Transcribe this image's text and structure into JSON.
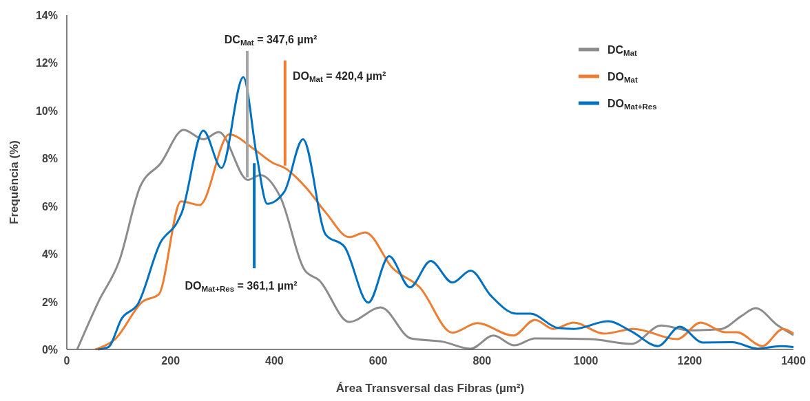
{
  "chart_data": {
    "type": "line",
    "xlabel": "Área Transversal das Fibras (µm²)",
    "ylabel": "Frequência (%)",
    "xlim": [
      0,
      1400
    ],
    "xticks": [
      0,
      200,
      400,
      600,
      800,
      1000,
      1200,
      1400
    ],
    "ylim": [
      0,
      14
    ],
    "yticks": [
      {
        "value": 0,
        "label": "0%"
      },
      {
        "value": 2,
        "label": "2%"
      },
      {
        "value": 4,
        "label": "4%"
      },
      {
        "value": 6,
        "label": "6%"
      },
      {
        "value": 8,
        "label": "8%"
      },
      {
        "value": 10,
        "label": "10%"
      },
      {
        "value": 12,
        "label": "12%"
      },
      {
        "value": 14,
        "label": "14%"
      }
    ],
    "grid": false,
    "legend": "top right",
    "line_style": "solid",
    "marker": "none",
    "series": [
      {
        "name": "DC$_{Mat}$",
        "color": "#8c8c8c",
        "x": [
          20,
          61,
          101,
          141,
          181,
          225,
          263,
          293,
          349,
          373,
          411,
          459,
          486,
          544,
          605,
          663,
          725,
          778,
          822,
          862,
          902,
          1008,
          1088,
          1145,
          1200,
          1260,
          1300,
          1327,
          1370,
          1400
        ],
        "values": [
          0,
          2.0,
          3.7,
          6.8,
          7.8,
          9.2,
          8.8,
          9.1,
          7.1,
          7.3,
          6.4,
          3.3,
          2.9,
          1.15,
          1.76,
          0.46,
          0.32,
          0.03,
          0.58,
          0.17,
          0.46,
          0.43,
          0.23,
          1.0,
          0.8,
          0.85,
          1.4,
          1.73,
          1.0,
          0.6
        ]
      },
      {
        "name": "DO$_{Mat}$",
        "color": "#ed7d31",
        "x": [
          55,
          93,
          146,
          177,
          220,
          256,
          313,
          360,
          398,
          420,
          460,
          500,
          544,
          575,
          628,
          680,
          743,
          791,
          860,
          902,
          937,
          977,
          1035,
          1092,
          1176,
          1221,
          1268,
          1291,
          1340,
          1380,
          1400
        ],
        "values": [
          0,
          0.43,
          2.0,
          2.3,
          6.2,
          6.05,
          9.0,
          8.4,
          7.8,
          7.6,
          6.8,
          5.7,
          4.7,
          4.9,
          3.4,
          2.6,
          0.7,
          1.1,
          0.58,
          1.24,
          0.86,
          1.12,
          0.66,
          0.86,
          0.43,
          1.12,
          0.72,
          0.72,
          0.14,
          0.86,
          0.66
        ]
      },
      {
        "name": "DO$_{Mat+Res}$",
        "color": "#0070c0",
        "x": [
          60,
          80,
          106,
          137,
          181,
          212,
          221,
          263,
          298,
          340,
          366,
          386,
          419,
          455,
          499,
          535,
          581,
          621,
          661,
          701,
          743,
          778,
          817,
          866,
          893,
          946,
          977,
          1043,
          1088,
          1139,
          1181,
          1225,
          1282,
          1331,
          1375,
          1400
        ],
        "values": [
          0,
          0.1,
          1.3,
          1.9,
          4.5,
          5.3,
          5.7,
          9.16,
          7.6,
          11.4,
          8.1,
          6.1,
          6.6,
          8.8,
          4.8,
          4.3,
          1.96,
          3.9,
          2.6,
          3.7,
          2.8,
          3.3,
          2.25,
          1.5,
          1.5,
          0.9,
          0.86,
          1.18,
          0.75,
          0.14,
          0.95,
          0.29,
          0.3,
          0.03,
          0.14,
          0.1
        ]
      }
    ],
    "ref_lines": [
      {
        "axis": "x",
        "value": 347.6,
        "label": "DC$_{Mat}$ = 347,6 µm²",
        "color": "#a6a6a6"
      },
      {
        "axis": "x",
        "value": 420.4,
        "label": "DO$_{Mat}$ = 420,4 µm²",
        "color": "#ed7d31"
      },
      {
        "axis": "x",
        "value": 361.1,
        "label": "DO$_{Mat+Res}$ = 361,1 µm²",
        "color": "#0070c0"
      }
    ]
  }
}
